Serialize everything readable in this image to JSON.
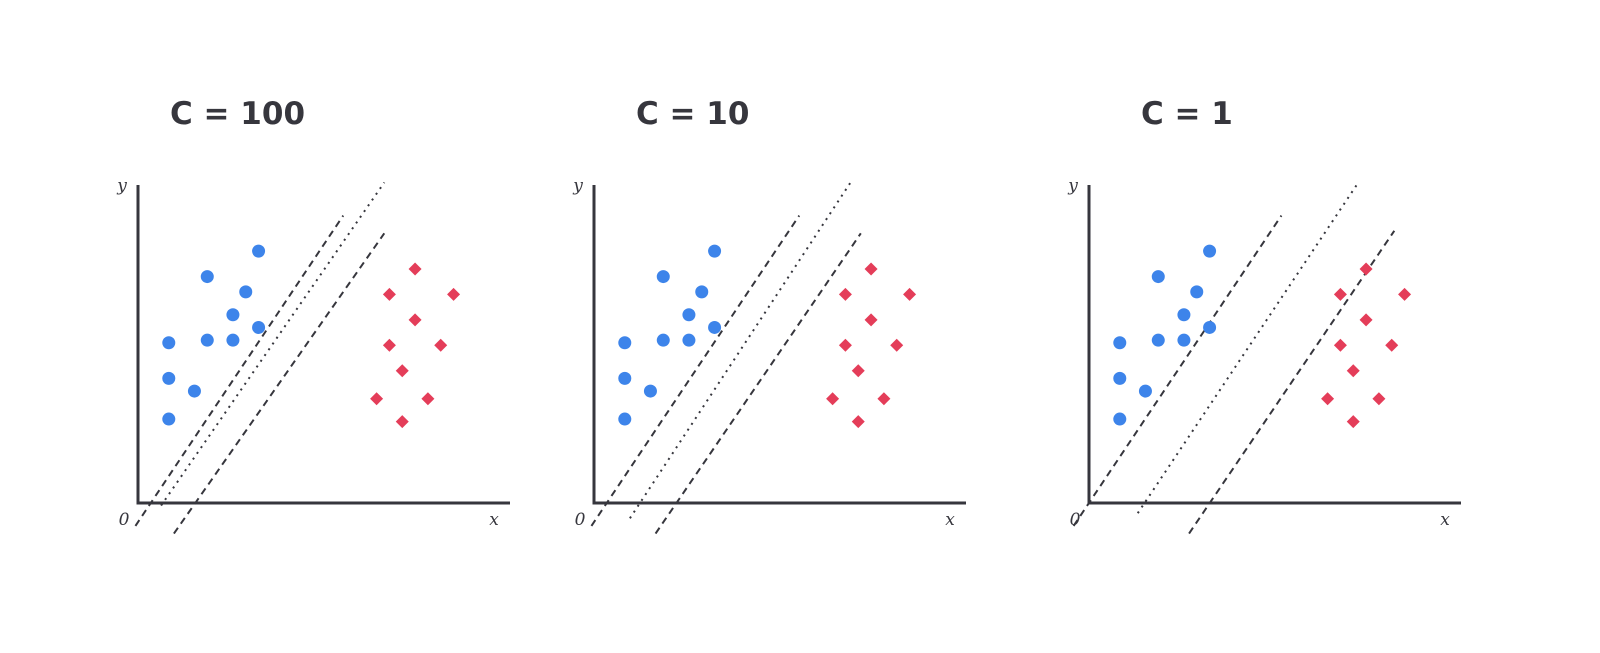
{
  "chart_data": [
    {
      "type": "scatter",
      "title": "C = 100",
      "xlabel": "x",
      "ylabel": "y",
      "origin_label": "0",
      "xlim": [
        0,
        14.5
      ],
      "ylim": [
        0,
        12.5
      ],
      "grid": false,
      "series": [
        {
          "marker": "circle",
          "color": "#3d84ea",
          "points": [
            [
              1.2,
              3.3
            ],
            [
              1.2,
              4.9
            ],
            [
              1.2,
              6.3
            ],
            [
              2.2,
              4.4
            ],
            [
              2.7,
              6.4
            ],
            [
              2.7,
              8.9
            ],
            [
              3.7,
              6.4
            ],
            [
              3.7,
              7.4
            ],
            [
              4.2,
              8.3
            ],
            [
              4.7,
              6.9
            ],
            [
              4.7,
              9.9
            ]
          ]
        },
        {
          "marker": "diamond",
          "color": "#e43d59",
          "points": [
            [
              9.3,
              4.1
            ],
            [
              9.8,
              6.2
            ],
            [
              9.8,
              8.2
            ],
            [
              10.3,
              3.2
            ],
            [
              10.3,
              5.2
            ],
            [
              10.8,
              7.2
            ],
            [
              10.8,
              9.2
            ],
            [
              11.3,
              4.1
            ],
            [
              11.8,
              6.2
            ],
            [
              12.3,
              8.2
            ]
          ]
        }
      ],
      "lines": [
        {
          "style": "dashed",
          "from": [
            -0.1,
            -0.9
          ],
          "to": [
            8.0,
            11.3
          ]
        },
        {
          "style": "dotted",
          "from": [
            0.9,
            -0.1
          ],
          "to": [
            9.6,
            12.6
          ]
        },
        {
          "style": "dashed",
          "from": [
            1.4,
            -1.2
          ],
          "to": [
            9.6,
            10.6
          ]
        }
      ]
    },
    {
      "type": "scatter",
      "title": "C = 10",
      "xlabel": "x",
      "ylabel": "y",
      "origin_label": "0",
      "xlim": [
        0,
        14.5
      ],
      "ylim": [
        0,
        12.5
      ],
      "grid": false,
      "series": [
        {
          "marker": "circle",
          "color": "#3d84ea",
          "points": [
            [
              1.2,
              3.3
            ],
            [
              1.2,
              4.9
            ],
            [
              1.2,
              6.3
            ],
            [
              2.2,
              4.4
            ],
            [
              2.7,
              6.4
            ],
            [
              2.7,
              8.9
            ],
            [
              3.7,
              6.4
            ],
            [
              3.7,
              7.4
            ],
            [
              4.2,
              8.3
            ],
            [
              4.7,
              6.9
            ],
            [
              4.7,
              9.9
            ]
          ]
        },
        {
          "marker": "diamond",
          "color": "#e43d59",
          "points": [
            [
              9.3,
              4.1
            ],
            [
              9.8,
              6.2
            ],
            [
              9.8,
              8.2
            ],
            [
              10.3,
              3.2
            ],
            [
              10.3,
              5.2
            ],
            [
              10.8,
              7.2
            ],
            [
              10.8,
              9.2
            ],
            [
              11.3,
              4.1
            ],
            [
              11.8,
              6.2
            ],
            [
              12.3,
              8.2
            ]
          ]
        }
      ],
      "lines": [
        {
          "style": "dashed",
          "from": [
            -0.1,
            -0.9
          ],
          "to": [
            8.0,
            11.3
          ]
        },
        {
          "style": "dotted",
          "from": [
            1.4,
            -0.6
          ],
          "to": [
            10.0,
            12.6
          ]
        },
        {
          "style": "dashed",
          "from": [
            2.4,
            -1.2
          ],
          "to": [
            10.4,
            10.6
          ]
        }
      ]
    },
    {
      "type": "scatter",
      "title": "C = 1",
      "xlabel": "x",
      "ylabel": "y",
      "origin_label": "0",
      "xlim": [
        0,
        14.5
      ],
      "ylim": [
        0,
        12.5
      ],
      "grid": false,
      "series": [
        {
          "marker": "circle",
          "color": "#3d84ea",
          "points": [
            [
              1.2,
              3.3
            ],
            [
              1.2,
              4.9
            ],
            [
              1.2,
              6.3
            ],
            [
              2.2,
              4.4
            ],
            [
              2.7,
              6.4
            ],
            [
              2.7,
              8.9
            ],
            [
              3.7,
              6.4
            ],
            [
              3.7,
              7.4
            ],
            [
              4.2,
              8.3
            ],
            [
              4.7,
              6.9
            ],
            [
              4.7,
              9.9
            ]
          ]
        },
        {
          "marker": "diamond",
          "color": "#e43d59",
          "points": [
            [
              9.3,
              4.1
            ],
            [
              9.8,
              6.2
            ],
            [
              9.8,
              8.2
            ],
            [
              10.3,
              3.2
            ],
            [
              10.3,
              5.2
            ],
            [
              10.8,
              7.2
            ],
            [
              10.8,
              9.2
            ],
            [
              11.3,
              4.1
            ],
            [
              11.8,
              6.2
            ],
            [
              12.3,
              8.2
            ]
          ]
        }
      ],
      "lines": [
        {
          "style": "dashed",
          "from": [
            -0.6,
            -0.9
          ],
          "to": [
            7.5,
            11.3
          ]
        },
        {
          "style": "dotted",
          "from": [
            1.9,
            -0.4
          ],
          "to": [
            10.5,
            12.6
          ]
        },
        {
          "style": "dashed",
          "from": [
            3.9,
            -1.2
          ],
          "to": [
            11.9,
            10.7
          ]
        }
      ]
    }
  ]
}
